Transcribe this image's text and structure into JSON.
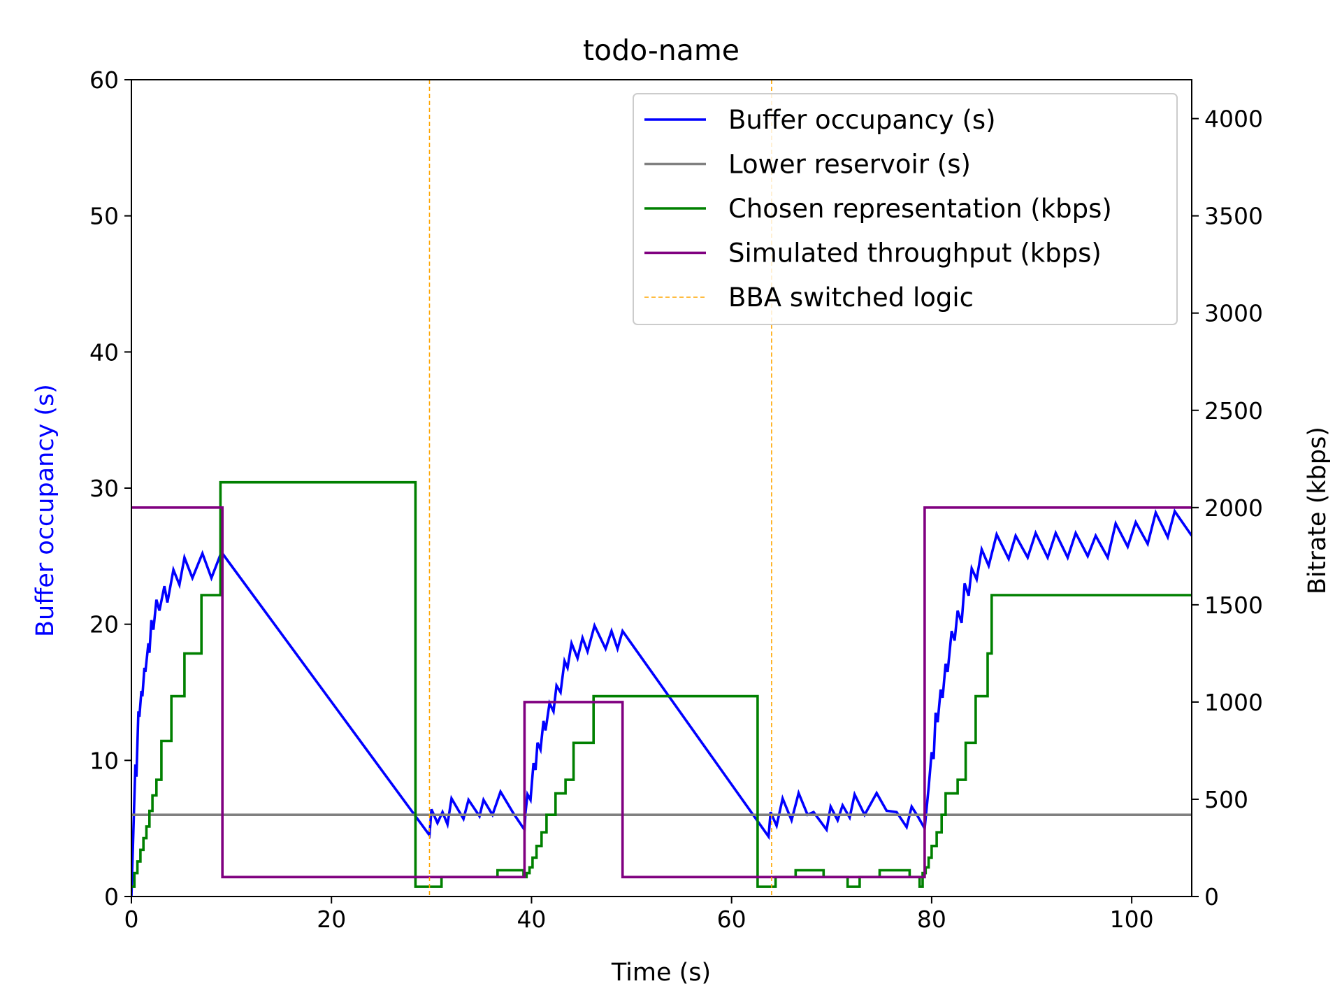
{
  "chart_data": {
    "type": "line",
    "title": "todo-name",
    "xlabel": "Time (s)",
    "ylabel_left": "Buffer occupancy (s)",
    "ylabel_right": "Bitrate (kbps)",
    "xlim": [
      0,
      106
    ],
    "ylim_left": [
      0,
      60
    ],
    "ylim_right": [
      0,
      4200
    ],
    "x_ticks": [
      0,
      20,
      40,
      60,
      80,
      100
    ],
    "y_ticks_left": [
      0,
      10,
      20,
      30,
      40,
      50,
      60
    ],
    "y_ticks_right": [
      0,
      500,
      1000,
      1500,
      2000,
      2500,
      3000,
      3500,
      4000
    ],
    "grid": false,
    "legend_position": "top-right",
    "colors": {
      "buffer": "#0000ff",
      "reservoir": "#808080",
      "representation": "#008000",
      "throughput": "#800080",
      "switch": "#ffa500",
      "left_label": "#0000ff"
    },
    "legend": [
      {
        "label": "Buffer occupancy (s)",
        "color": "#0000ff",
        "style": "solid"
      },
      {
        "label": "Lower reservoir (s)",
        "color": "#808080",
        "style": "solid"
      },
      {
        "label": "Chosen representation (kbps)",
        "color": "#008000",
        "style": "solid"
      },
      {
        "label": "Simulated throughput (kbps)",
        "color": "#800080",
        "style": "solid"
      },
      {
        "label": "BBA switched logic",
        "color": "#ffa500",
        "style": "dashed"
      }
    ],
    "series": [
      {
        "name": "Buffer occupancy (s)",
        "axis": "left",
        "points": [
          [
            0,
            0
          ],
          [
            0.4,
            9.7
          ],
          [
            0.5,
            8.8
          ],
          [
            0.7,
            13.6
          ],
          [
            0.8,
            13.2
          ],
          [
            1.0,
            15.1
          ],
          [
            1.1,
            14.7
          ],
          [
            1.3,
            16.8
          ],
          [
            1.4,
            16.5
          ],
          [
            1.7,
            18.6
          ],
          [
            1.8,
            17.9
          ],
          [
            2.0,
            20.3
          ],
          [
            2.2,
            19.6
          ],
          [
            2.5,
            21.8
          ],
          [
            2.8,
            21.0
          ],
          [
            3.3,
            22.8
          ],
          [
            3.6,
            21.6
          ],
          [
            4.2,
            24.0
          ],
          [
            4.8,
            22.9
          ],
          [
            5.3,
            24.9
          ],
          [
            6.1,
            23.4
          ],
          [
            7.1,
            25.2
          ],
          [
            8.0,
            23.4
          ],
          [
            9.0,
            25.3
          ],
          [
            29.8,
            4.5
          ],
          [
            30.0,
            6.4
          ],
          [
            30.6,
            5.4
          ],
          [
            31.1,
            6.2
          ],
          [
            31.6,
            5.3
          ],
          [
            32.0,
            7.2
          ],
          [
            33.2,
            5.7
          ],
          [
            33.7,
            7.1
          ],
          [
            34.8,
            5.9
          ],
          [
            35.2,
            7.1
          ],
          [
            36.1,
            6.0
          ],
          [
            36.9,
            7.7
          ],
          [
            38.2,
            6.1
          ],
          [
            39.3,
            4.9
          ],
          [
            39.4,
            6.2
          ],
          [
            39.6,
            7.5
          ],
          [
            39.9,
            7.1
          ],
          [
            40.2,
            9.8
          ],
          [
            40.4,
            9.3
          ],
          [
            40.6,
            11.3
          ],
          [
            40.9,
            10.8
          ],
          [
            41.2,
            12.9
          ],
          [
            41.4,
            12.2
          ],
          [
            41.8,
            14.2
          ],
          [
            42.2,
            13.6
          ],
          [
            42.5,
            15.5
          ],
          [
            42.9,
            15.0
          ],
          [
            43.3,
            17.3
          ],
          [
            43.6,
            16.8
          ],
          [
            44.0,
            18.6
          ],
          [
            44.6,
            17.5
          ],
          [
            45.1,
            19.0
          ],
          [
            45.6,
            18.0
          ],
          [
            46.3,
            19.9
          ],
          [
            47.4,
            18.2
          ],
          [
            48.0,
            19.5
          ],
          [
            48.6,
            18.2
          ],
          [
            49.1,
            19.5
          ],
          [
            63.7,
            4.4
          ],
          [
            63.9,
            6.2
          ],
          [
            64.5,
            5.2
          ],
          [
            65.1,
            7.2
          ],
          [
            66.0,
            5.6
          ],
          [
            66.7,
            7.6
          ],
          [
            67.6,
            6.0
          ],
          [
            68.2,
            6.2
          ],
          [
            69.5,
            4.9
          ],
          [
            69.9,
            6.6
          ],
          [
            70.6,
            5.6
          ],
          [
            71.1,
            6.7
          ],
          [
            71.8,
            5.8
          ],
          [
            72.3,
            7.5
          ],
          [
            73.3,
            6.0
          ],
          [
            74.5,
            7.6
          ],
          [
            75.5,
            6.3
          ],
          [
            76.5,
            6.2
          ],
          [
            77.5,
            5.1
          ],
          [
            78.0,
            6.6
          ],
          [
            78.6,
            5.9
          ],
          [
            79.3,
            5.0
          ],
          [
            79.7,
            8.0
          ],
          [
            80.0,
            10.6
          ],
          [
            80.2,
            10.1
          ],
          [
            80.4,
            13.5
          ],
          [
            80.6,
            12.8
          ],
          [
            80.9,
            15.2
          ],
          [
            81.1,
            14.6
          ],
          [
            81.4,
            17.1
          ],
          [
            81.6,
            16.5
          ],
          [
            82.0,
            19.5
          ],
          [
            82.3,
            18.8
          ],
          [
            82.6,
            21.0
          ],
          [
            83.0,
            20.1
          ],
          [
            83.3,
            23.0
          ],
          [
            83.7,
            22.1
          ],
          [
            84.0,
            24.1
          ],
          [
            84.5,
            23.3
          ],
          [
            85.0,
            25.5
          ],
          [
            85.7,
            24.3
          ],
          [
            86.5,
            26.6
          ],
          [
            87.7,
            24.8
          ],
          [
            88.4,
            26.5
          ],
          [
            89.6,
            24.9
          ],
          [
            90.4,
            26.7
          ],
          [
            91.6,
            24.9
          ],
          [
            92.4,
            26.7
          ],
          [
            93.6,
            24.9
          ],
          [
            94.4,
            26.7
          ],
          [
            95.6,
            25.0
          ],
          [
            96.4,
            26.5
          ],
          [
            97.6,
            24.9
          ],
          [
            98.4,
            27.4
          ],
          [
            99.6,
            25.7
          ],
          [
            100.4,
            27.5
          ],
          [
            101.6,
            25.9
          ],
          [
            102.4,
            28.2
          ],
          [
            103.6,
            26.4
          ],
          [
            104.3,
            28.3
          ],
          [
            106,
            26.5
          ]
        ]
      },
      {
        "name": "Lower reservoir (s)",
        "axis": "left",
        "points": [
          [
            0,
            6
          ],
          [
            106,
            6
          ]
        ]
      },
      {
        "name": "Chosen representation (kbps)",
        "axis": "right",
        "step": true,
        "points": [
          [
            0,
            50
          ],
          [
            0.3,
            120
          ],
          [
            0.6,
            180
          ],
          [
            0.9,
            240
          ],
          [
            1.2,
            300
          ],
          [
            1.5,
            360
          ],
          [
            1.8,
            440
          ],
          [
            2.1,
            520
          ],
          [
            2.5,
            600
          ],
          [
            3.0,
            800
          ],
          [
            4.0,
            1030
          ],
          [
            5.3,
            1250
          ],
          [
            7.0,
            1550
          ],
          [
            8.9,
            2130
          ],
          [
            28.4,
            50
          ],
          [
            31.0,
            100
          ],
          [
            36.6,
            135
          ],
          [
            39.2,
            100
          ],
          [
            39.5,
            120
          ],
          [
            39.8,
            150
          ],
          [
            40.1,
            200
          ],
          [
            40.5,
            260
          ],
          [
            41.0,
            330
          ],
          [
            41.5,
            420
          ],
          [
            42.4,
            530
          ],
          [
            43.4,
            600
          ],
          [
            44.2,
            790
          ],
          [
            46.2,
            1030
          ],
          [
            62.6,
            50
          ],
          [
            64.4,
            100
          ],
          [
            66.4,
            135
          ],
          [
            69.2,
            100
          ],
          [
            71.6,
            50
          ],
          [
            72.8,
            100
          ],
          [
            74.8,
            135
          ],
          [
            77.8,
            100
          ],
          [
            78.8,
            50
          ],
          [
            79.1,
            120
          ],
          [
            79.4,
            150
          ],
          [
            79.7,
            200
          ],
          [
            80.0,
            260
          ],
          [
            80.5,
            330
          ],
          [
            81.0,
            420
          ],
          [
            81.4,
            530
          ],
          [
            82.6,
            600
          ],
          [
            83.4,
            790
          ],
          [
            84.4,
            1030
          ],
          [
            85.6,
            1250
          ],
          [
            86.0,
            1550
          ],
          [
            106,
            1550
          ]
        ]
      },
      {
        "name": "Simulated throughput (kbps)",
        "axis": "right",
        "step": true,
        "points": [
          [
            0,
            2000
          ],
          [
            9.1,
            100
          ],
          [
            39.3,
            1000
          ],
          [
            49.1,
            100
          ],
          [
            79.3,
            2000
          ],
          [
            106,
            2000
          ]
        ]
      }
    ],
    "switch_lines_x": [
      29.8,
      64.0
    ]
  }
}
